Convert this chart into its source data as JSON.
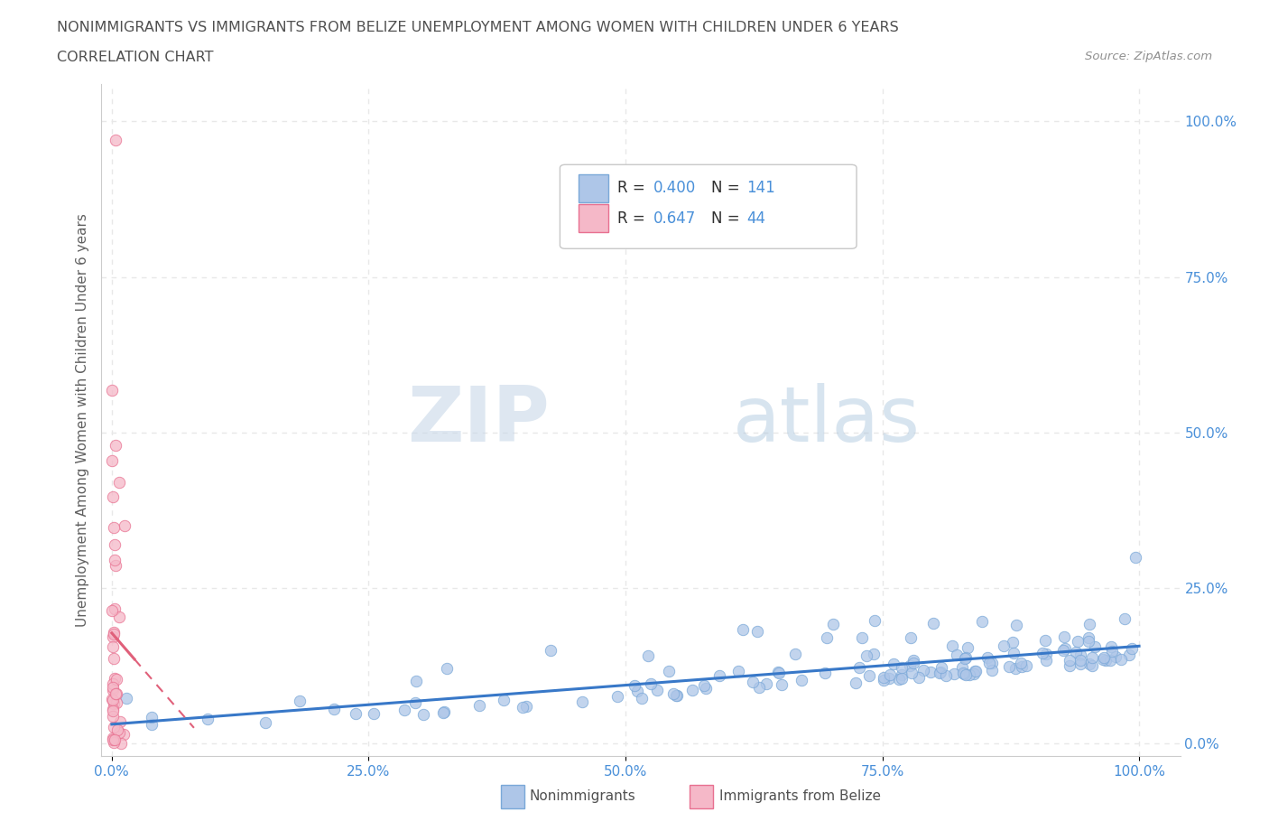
{
  "title_line1": "NONIMMIGRANTS VS IMMIGRANTS FROM BELIZE UNEMPLOYMENT AMONG WOMEN WITH CHILDREN UNDER 6 YEARS",
  "title_line2": "CORRELATION CHART",
  "source": "Source: ZipAtlas.com",
  "ylabel": "Unemployment Among Women with Children Under 6 years",
  "x_tick_labels": [
    "0.0%",
    "25.0%",
    "50.0%",
    "75.0%",
    "100.0%"
  ],
  "x_tick_vals": [
    0.0,
    0.25,
    0.5,
    0.75,
    1.0
  ],
  "y_tick_labels": [
    "0.0%",
    "25.0%",
    "50.0%",
    "75.0%",
    "100.0%"
  ],
  "y_tick_vals": [
    0.0,
    0.25,
    0.5,
    0.75,
    1.0
  ],
  "nonimm_color": "#aec6e8",
  "nonimm_edge": "#7aa8d8",
  "imm_color": "#f5b8c8",
  "imm_edge": "#e87090",
  "nonimm_line_color": "#3878c8",
  "imm_line_color": "#e0607a",
  "R_nonimm": 0.4,
  "N_nonimm": 141,
  "R_imm": 0.647,
  "N_imm": 44,
  "legend_label_nonimm": "Nonimmigrants",
  "legend_label_imm": "Immigrants from Belize",
  "watermark_zip": "ZIP",
  "watermark_atlas": "atlas",
  "background_color": "#ffffff",
  "grid_color": "#e8e8e8",
  "grid_dash": [
    4,
    4
  ],
  "title_color": "#505050",
  "axis_label_color": "#4a90d9",
  "legend_R_color": "#4a90d9",
  "legend_N_color": "#303030"
}
